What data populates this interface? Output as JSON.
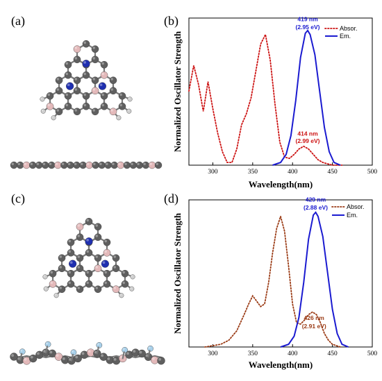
{
  "panels": {
    "a": "(a)",
    "b": "(b)",
    "c": "(c)",
    "d": "(d)"
  },
  "colors": {
    "carbon": "#5f5f5f",
    "hydrogen": "#cfcfcf",
    "boron": "#e3b9ba",
    "nitrogen": "#1f2fb0",
    "fluorine": "#a8d0ea",
    "absorption_b": "#cc1111",
    "absorption_d": "#9a3a14",
    "emission": "#1a1ad0"
  },
  "chart_data": [
    {
      "panel": "b",
      "type": "line",
      "xlabel": "Wavelength(nm)",
      "ylabel": "Normalized Oscillator Strength",
      "xlim": [
        270,
        500
      ],
      "xticks": [
        300,
        350,
        400,
        450,
        500
      ],
      "legend": [
        "Absor.",
        "Em."
      ],
      "legend_position": "top-right",
      "series": [
        {
          "name": "Absor.",
          "style": "dotted",
          "x": [
            270,
            276,
            282,
            288,
            294,
            300,
            306,
            312,
            318,
            324,
            330,
            336,
            342,
            348,
            354,
            360,
            366,
            372,
            378,
            384,
            390,
            396,
            402,
            408,
            414,
            420,
            426,
            432,
            438,
            444,
            450,
            456,
            462
          ],
          "y": [
            0.55,
            0.74,
            0.6,
            0.4,
            0.62,
            0.42,
            0.24,
            0.1,
            0.02,
            0.02,
            0.12,
            0.3,
            0.38,
            0.5,
            0.7,
            0.9,
            0.97,
            0.78,
            0.45,
            0.17,
            0.06,
            0.05,
            0.08,
            0.12,
            0.14,
            0.12,
            0.08,
            0.04,
            0.02,
            0.01,
            0.0,
            0.0,
            0.0
          ]
        },
        {
          "name": "Em.",
          "style": "solid",
          "x": [
            375,
            385,
            392,
            398,
            404,
            410,
            416,
            419,
            422,
            428,
            434,
            440,
            446,
            452,
            460
          ],
          "y": [
            0.0,
            0.02,
            0.08,
            0.22,
            0.48,
            0.8,
            0.98,
            1.0,
            0.97,
            0.82,
            0.55,
            0.28,
            0.1,
            0.02,
            0.0
          ]
        }
      ],
      "annotations": [
        {
          "text": "419 nm",
          "x": 419,
          "y": 1.07,
          "color": "#1a1ad0"
        },
        {
          "text": "(2.95 eV)",
          "x": 419,
          "y": 1.01,
          "color": "#1a1ad0"
        },
        {
          "text": "414 nm",
          "x": 419,
          "y": 0.22,
          "color": "#cc1111"
        },
        {
          "text": "(2.99 eV)",
          "x": 419,
          "y": 0.165,
          "color": "#cc1111"
        }
      ]
    },
    {
      "panel": "d",
      "type": "line",
      "xlabel": "Wavelength(nm)",
      "ylabel": "Normalized Oscillator Strength",
      "xlim": [
        270,
        500
      ],
      "xticks": [
        300,
        350,
        400,
        450,
        500
      ],
      "legend": [
        "Absor.",
        "Em."
      ],
      "legend_position": "top-right",
      "series": [
        {
          "name": "Absor.",
          "style": "dotted",
          "x": [
            290,
            300,
            310,
            320,
            330,
            340,
            345,
            350,
            355,
            360,
            365,
            370,
            375,
            380,
            385,
            390,
            395,
            400,
            405,
            410,
            415,
            420,
            425,
            430,
            435,
            440,
            445,
            450,
            460
          ],
          "y": [
            0.0,
            0.01,
            0.02,
            0.05,
            0.12,
            0.25,
            0.32,
            0.38,
            0.34,
            0.3,
            0.32,
            0.48,
            0.7,
            0.88,
            0.97,
            0.86,
            0.6,
            0.32,
            0.18,
            0.17,
            0.2,
            0.24,
            0.26,
            0.24,
            0.18,
            0.1,
            0.05,
            0.02,
            0.0
          ]
        },
        {
          "name": "Em.",
          "style": "solid",
          "x": [
            385,
            395,
            402,
            408,
            414,
            420,
            426,
            429,
            432,
            438,
            444,
            450,
            456,
            462,
            470
          ],
          "y": [
            0.0,
            0.02,
            0.08,
            0.22,
            0.48,
            0.8,
            0.98,
            1.0,
            0.97,
            0.82,
            0.55,
            0.28,
            0.1,
            0.02,
            0.0
          ]
        }
      ],
      "annotations": [
        {
          "text": "429 nm",
          "x": 429,
          "y": 1.08,
          "color": "#1a1ad0"
        },
        {
          "text": "(2.88 eV)",
          "x": 429,
          "y": 1.02,
          "color": "#1a1ad0"
        },
        {
          "text": "426 nm",
          "x": 427,
          "y": 0.2,
          "color": "#9a3a14"
        },
        {
          "text": "(2.91 eV)",
          "x": 427,
          "y": 0.14,
          "color": "#9a3a14"
        }
      ]
    }
  ]
}
